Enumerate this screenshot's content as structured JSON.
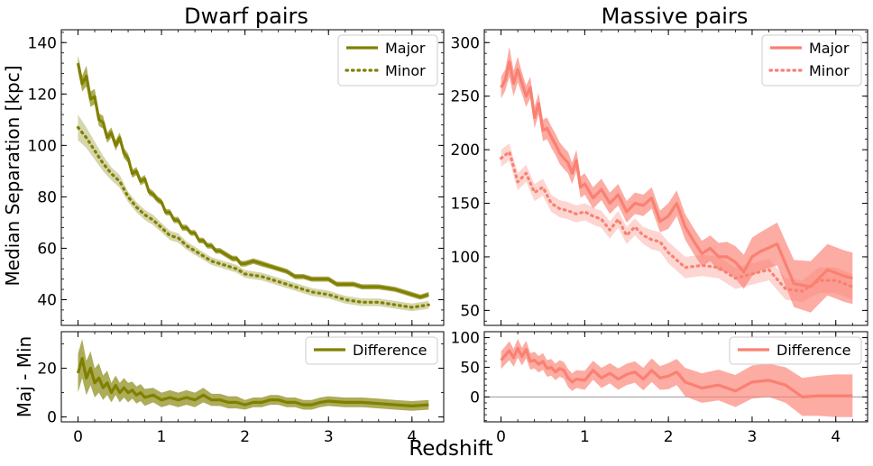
{
  "chart_data": {
    "type": "line",
    "xlabel": "Redshift",
    "ylabel_top": "Median Separation [kpc]",
    "ylabel_bottom": "Maj - Min",
    "panels": [
      {
        "id": "dwarf-top",
        "title": "Dwarf pairs",
        "color": "#808000",
        "xlim": [
          -0.2,
          4.38
        ],
        "ylim": [
          30,
          145
        ],
        "yticks": [
          40,
          60,
          80,
          100,
          120,
          140
        ],
        "xticks": [
          0,
          1,
          2,
          3,
          4
        ],
        "legend": "top-right",
        "series": [
          {
            "name": "Major",
            "style": "solid",
            "x": [
              0,
              0.05,
              0.1,
              0.15,
              0.2,
              0.25,
              0.3,
              0.35,
              0.4,
              0.45,
              0.5,
              0.55,
              0.6,
              0.65,
              0.7,
              0.75,
              0.8,
              0.85,
              0.9,
              0.95,
              1.0,
              1.05,
              1.1,
              1.15,
              1.2,
              1.25,
              1.3,
              1.35,
              1.4,
              1.45,
              1.5,
              1.55,
              1.6,
              1.65,
              1.7,
              1.75,
              1.8,
              1.85,
              1.9,
              1.95,
              2.0,
              2.1,
              2.2,
              2.3,
              2.4,
              2.5,
              2.6,
              2.7,
              2.8,
              2.9,
              3.0,
              3.1,
              3.2,
              3.3,
              3.4,
              3.5,
              3.6,
              3.7,
              3.8,
              3.9,
              4.0,
              4.1,
              4.2
            ],
            "y": [
              132,
              124,
              127,
              118,
              119,
              110,
              109,
              103,
              105,
              100,
              103,
              97,
              95,
              89,
              90,
              86,
              87,
              82,
              81,
              79,
              78,
              74,
              74,
              71,
              71,
              68,
              68,
              66,
              66,
              63,
              63,
              61,
              61,
              59,
              59,
              58,
              57,
              56,
              56,
              54,
              54,
              55,
              54,
              53,
              52,
              51,
              49,
              49,
              48,
              48,
              48,
              46,
              46,
              46,
              45,
              45,
              45,
              44.5,
              44,
              43,
              42,
              41,
              42
            ],
            "band": [
              3,
              3,
              4,
              3,
              3,
              2.5,
              2.5,
              2,
              2,
              2,
              2,
              2,
              1.8,
              1.6,
              1.6,
              1.5,
              1.5,
              1.4,
              1.3,
              1.3,
              1.2,
              1.2,
              1.2,
              1.2,
              1.2,
              1.2,
              1.2,
              1.1,
              1.1,
              1.1,
              1.1,
              1.1,
              1.1,
              1.1,
              1.1,
              1.1,
              1.1,
              1.1,
              1.1,
              1.1,
              1.1,
              1.1,
              1.1,
              1,
              1,
              1,
              1,
              1,
              1,
              1,
              1,
              1,
              1,
              1,
              1,
              1,
              1,
              1,
              1,
              1,
              1,
              1,
              1
            ]
          },
          {
            "name": "Minor",
            "style": "dotted",
            "x": [
              0,
              0.1,
              0.2,
              0.3,
              0.4,
              0.5,
              0.6,
              0.7,
              0.8,
              0.9,
              1.0,
              1.1,
              1.2,
              1.3,
              1.4,
              1.5,
              1.6,
              1.7,
              1.8,
              1.9,
              2.0,
              2.2,
              2.4,
              2.6,
              2.8,
              3.0,
              3.2,
              3.4,
              3.6,
              3.8,
              4.0,
              4.2
            ],
            "y": [
              107,
              103,
              98,
              93,
              89,
              86,
              80,
              76,
              73,
              71,
              68,
              65,
              64,
              61,
              59,
              57,
              55,
              54,
              53,
              52,
              50,
              49,
              47,
              45,
              43,
              42,
              40,
              39,
              39,
              38,
              37,
              38
            ],
            "band": [
              5,
              4,
              3.5,
              3,
              2.5,
              2.5,
              2,
              2,
              2,
              2,
              1.8,
              1.8,
              1.8,
              1.6,
              1.6,
              1.5,
              1.5,
              1.5,
              1.5,
              1.5,
              1.5,
              1.5,
              1.5,
              1.5,
              1.5,
              1.5,
              1.5,
              1.5,
              1.5,
              1.5,
              1.5,
              1.5
            ]
          }
        ]
      },
      {
        "id": "massive-top",
        "title": "Massive pairs",
        "color": "#fa8072",
        "xlim": [
          -0.2,
          4.38
        ],
        "ylim": [
          36,
          312
        ],
        "yticks": [
          50,
          100,
          150,
          200,
          250,
          300
        ],
        "xticks": [
          0,
          1,
          2,
          3,
          4
        ],
        "legend": "top-right",
        "series": [
          {
            "name": "Major",
            "style": "solid",
            "x": [
              0,
              0.05,
              0.1,
              0.15,
              0.2,
              0.25,
              0.3,
              0.35,
              0.4,
              0.45,
              0.5,
              0.55,
              0.6,
              0.65,
              0.7,
              0.75,
              0.8,
              0.85,
              0.9,
              0.95,
              1.0,
              1.1,
              1.2,
              1.3,
              1.4,
              1.5,
              1.6,
              1.7,
              1.8,
              1.9,
              2.0,
              2.1,
              2.2,
              2.3,
              2.4,
              2.5,
              2.6,
              2.7,
              2.8,
              2.9,
              3.0,
              3.1,
              3.3,
              3.5,
              3.7,
              3.9,
              4.1,
              4.2
            ],
            "y": [
              258,
              265,
              282,
              262,
              275,
              262,
              250,
              258,
              230,
              243,
              218,
              220,
              212,
              205,
              197,
              192,
              188,
              178,
              190,
              165,
              168,
              155,
              163,
              150,
              158,
              142,
              150,
              148,
              155,
              133,
              138,
              150,
              128,
              115,
              103,
              108,
              100,
              100,
              95,
              86,
              100,
              105,
              112,
              75,
              72,
              88,
              82,
              80
            ],
            "band": [
              10,
              10,
              14,
              12,
              12,
              10,
              10,
              10,
              10,
              10,
              10,
              10,
              10,
              10,
              10,
              10,
              10,
              10,
              10,
              10,
              10,
              10,
              10,
              10,
              10,
              10,
              10,
              10,
              10,
              10,
              12,
              12,
              12,
              12,
              12,
              12,
              13,
              14,
              15,
              16,
              18,
              18,
              20,
              22,
              24,
              24,
              24,
              24
            ]
          },
          {
            "name": "Minor",
            "style": "dotted",
            "x": [
              0,
              0.1,
              0.2,
              0.3,
              0.4,
              0.5,
              0.6,
              0.7,
              0.8,
              0.9,
              1.0,
              1.1,
              1.2,
              1.3,
              1.4,
              1.5,
              1.6,
              1.7,
              1.8,
              1.9,
              2.0,
              2.2,
              2.4,
              2.6,
              2.8,
              3.0,
              3.2,
              3.4,
              3.6,
              3.8,
              4.0,
              4.2
            ],
            "y": [
              192,
              198,
              170,
              178,
              160,
              165,
              150,
              145,
              143,
              140,
              142,
              138,
              135,
              125,
              135,
              120,
              128,
              120,
              116,
              114,
              104,
              90,
              92,
              90,
              80,
              84,
              88,
              70,
              68,
              78,
              78,
              72
            ],
            "band": [
              8,
              8,
              8,
              8,
              8,
              8,
              8,
              8,
              8,
              8,
              8,
              8,
              8,
              8,
              8,
              8,
              8,
              8,
              9,
              9,
              10,
              10,
              10,
              10,
              10,
              10,
              10,
              10,
              10,
              12,
              12,
              12
            ]
          }
        ]
      },
      {
        "id": "dwarf-bottom",
        "color": "#808000",
        "xlim": [
          -0.2,
          4.38
        ],
        "ylim": [
          -2,
          35
        ],
        "yticks": [
          0,
          20
        ],
        "xticks": [
          0,
          1,
          2,
          3,
          4
        ],
        "legend": "top-right",
        "series": [
          {
            "name": "Difference",
            "style": "solid",
            "x": [
              0,
              0.05,
              0.1,
              0.15,
              0.2,
              0.25,
              0.3,
              0.35,
              0.4,
              0.45,
              0.5,
              0.55,
              0.6,
              0.65,
              0.7,
              0.75,
              0.8,
              0.9,
              1.0,
              1.1,
              1.2,
              1.3,
              1.4,
              1.5,
              1.6,
              1.7,
              1.8,
              1.9,
              2.0,
              2.1,
              2.2,
              2.3,
              2.4,
              2.5,
              2.6,
              2.7,
              2.8,
              2.9,
              3.0,
              3.2,
              3.4,
              3.6,
              3.8,
              4.0,
              4.2
            ],
            "y": [
              18,
              24,
              16,
              20,
              14,
              16,
              12,
              14,
              10,
              13,
              10,
              12,
              10,
              11,
              9,
              10,
              8,
              9,
              7,
              8,
              7,
              8,
              7,
              9,
              7,
              7,
              6,
              6,
              5,
              6,
              6,
              7,
              7,
              6,
              6,
              5,
              5,
              6,
              6.5,
              6,
              6,
              5.5,
              5,
              4.5,
              5
            ],
            "band": [
              8,
              8,
              7,
              7,
              6,
              6,
              5,
              5,
              4,
              4,
              4,
              4,
              4,
              3.5,
              3.5,
              3.5,
              3.5,
              3,
              3,
              3,
              3,
              3,
              3,
              3,
              2.5,
              2.5,
              2.5,
              2.5,
              2,
              2,
              2,
              2,
              2,
              2,
              2,
              2,
              2,
              2,
              2,
              2,
              2,
              2,
              2,
              2,
              2
            ]
          }
        ]
      },
      {
        "id": "massive-bottom",
        "color": "#fa8072",
        "xlim": [
          -0.2,
          4.38
        ],
        "ylim": [
          -42,
          110
        ],
        "yticks": [
          0,
          50,
          100
        ],
        "xticks": [
          0,
          1,
          2,
          3,
          4
        ],
        "hline": 0,
        "legend": "top-right",
        "series": [
          {
            "name": "Difference",
            "style": "solid",
            "x": [
              0,
              0.05,
              0.1,
              0.15,
              0.2,
              0.25,
              0.3,
              0.35,
              0.4,
              0.45,
              0.5,
              0.55,
              0.6,
              0.65,
              0.7,
              0.75,
              0.8,
              0.85,
              0.9,
              1.0,
              1.1,
              1.2,
              1.3,
              1.4,
              1.5,
              1.6,
              1.7,
              1.8,
              1.9,
              2.0,
              2.1,
              2.2,
              2.4,
              2.6,
              2.8,
              3.0,
              3.2,
              3.4,
              3.6,
              3.8,
              4.0,
              4.2
            ],
            "y": [
              62,
              70,
              78,
              66,
              82,
              68,
              80,
              60,
              62,
              55,
              60,
              48,
              50,
              42,
              48,
              45,
              32,
              25,
              30,
              28,
              45,
              32,
              40,
              30,
              38,
              42,
              30,
              45,
              32,
              35,
              42,
              25,
              15,
              20,
              10,
              25,
              28,
              20,
              0,
              2,
              2,
              2
            ],
            "band": [
              15,
              15,
              16,
              15,
              16,
              15,
              15,
              14,
              14,
              14,
              14,
              14,
              14,
              14,
              14,
              14,
              15,
              15,
              15,
              16,
              16,
              17,
              17,
              18,
              18,
              18,
              19,
              20,
              20,
              22,
              22,
              24,
              25,
              26,
              27,
              28,
              28,
              30,
              32,
              34,
              36,
              36
            ]
          }
        ]
      }
    ]
  }
}
